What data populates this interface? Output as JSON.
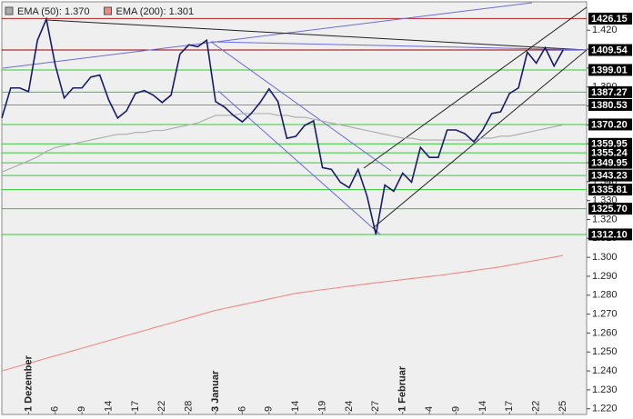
{
  "chart_data": {
    "type": "line",
    "categories": [
      null,
      null,
      null,
      "1 Dezember",
      null,
      null,
      "6",
      null,
      null,
      "9",
      null,
      null,
      "14",
      null,
      null,
      "17",
      null,
      null,
      "22",
      null,
      null,
      "28",
      null,
      null,
      "3 Januar",
      null,
      null,
      "6",
      null,
      null,
      "9",
      null,
      null,
      "14",
      null,
      null,
      "19",
      null,
      null,
      "24",
      null,
      null,
      "27",
      null,
      null,
      "1 Februar",
      null,
      null,
      "4",
      null,
      null,
      "9",
      null,
      null,
      "14",
      null,
      null,
      "17",
      null,
      null,
      "22",
      null,
      null,
      "25"
    ],
    "series": [
      {
        "name": "EMA (50): 1.370",
        "color": "#aaaaaa",
        "values": [
          1.345,
          1.347,
          1.349,
          1.351,
          1.353,
          1.356,
          1.358,
          1.359,
          1.36,
          1.361,
          1.362,
          1.363,
          1.364,
          1.365,
          1.365,
          1.366,
          1.366,
          1.367,
          1.367,
          1.368,
          1.369,
          1.37,
          1.371,
          1.373,
          1.375,
          1.375,
          1.375,
          1.376,
          1.376,
          1.376,
          1.376,
          1.375,
          1.375,
          1.374,
          1.374,
          1.373,
          1.372,
          1.371,
          1.37,
          1.369,
          1.368,
          1.367,
          1.366,
          1.365,
          1.364,
          1.363,
          1.363,
          1.362,
          1.362,
          1.362,
          1.362,
          1.362,
          1.362,
          1.362,
          1.363,
          1.363,
          1.364,
          1.364,
          1.365,
          1.366,
          1.367,
          1.368,
          1.369,
          1.37
        ]
      },
      {
        "name": "EMA (200): 1.301",
        "color": "#f08a80",
        "values": [
          1.24,
          1.2413,
          1.2427,
          1.244,
          1.2453,
          1.2467,
          1.248,
          1.2493,
          1.2507,
          1.252,
          1.2533,
          1.2547,
          1.256,
          1.2573,
          1.2587,
          1.26,
          1.2613,
          1.2627,
          1.264,
          1.2653,
          1.2667,
          1.268,
          1.2693,
          1.2707,
          1.272,
          1.273,
          1.274,
          1.275,
          1.276,
          1.277,
          1.278,
          1.279,
          1.28,
          1.281,
          1.2816,
          1.2823,
          1.2829,
          1.2835,
          1.2841,
          1.2848,
          1.2854,
          1.286,
          1.2866,
          1.2871,
          1.2877,
          1.2882,
          1.2888,
          1.2893,
          1.2899,
          1.2904,
          1.291,
          1.2917,
          1.2923,
          1.293,
          1.2937,
          1.2943,
          1.295,
          1.2959,
          1.2967,
          1.2976,
          1.2984,
          1.2993,
          1.3001,
          1.301
        ]
      },
      {
        "color": "#1a1a6e",
        "values": [
          1.3736,
          1.3895,
          1.3895,
          1.3876,
          1.4147,
          1.4258,
          1.4016,
          1.3842,
          1.3895,
          1.3895,
          1.3953,
          1.3963,
          1.3832,
          1.3736,
          1.3774,
          1.3866,
          1.3881,
          1.3857,
          1.3818,
          1.3857,
          1.4074,
          1.4123,
          1.4113,
          1.4147,
          1.3823,
          1.3794,
          1.375,
          1.3716,
          1.376,
          1.3818,
          1.389,
          1.3823,
          1.3629,
          1.3639,
          1.3697,
          1.3721,
          1.3474,
          1.3465,
          1.3397,
          1.3368,
          1.3465,
          1.3324,
          1.3121,
          1.3382,
          1.3349,
          1.3445,
          1.3397,
          1.3581,
          1.3528,
          1.3528,
          1.3673,
          1.3673,
          1.3653,
          1.361,
          1.3673,
          1.376,
          1.3769,
          1.3866,
          1.3895,
          1.4084,
          1.4026,
          1.4108,
          1.4011,
          1.4094
        ]
      }
    ],
    "ylim": [
      1.217,
      1.435
    ],
    "yticks": [
      {
        "value": 1.22,
        "label": "1.220"
      },
      {
        "value": 1.23,
        "label": "1.230"
      },
      {
        "value": 1.24,
        "label": "1.240"
      },
      {
        "value": 1.25,
        "label": "1.250"
      },
      {
        "value": 1.26,
        "label": "1.260"
      },
      {
        "value": 1.27,
        "label": "1.270"
      },
      {
        "value": 1.28,
        "label": "1.280"
      },
      {
        "value": 1.29,
        "label": "1.290"
      },
      {
        "value": 1.3,
        "label": "1.300"
      },
      {
        "value": 1.31,
        "label": "1.310"
      },
      {
        "value": 1.32,
        "label": "1.320"
      },
      {
        "value": 1.33,
        "label": "1.330"
      },
      {
        "value": 1.34,
        "label": "1.340"
      },
      {
        "value": 1.35,
        "label": "1.350"
      },
      {
        "value": 1.36,
        "label": "1.360"
      },
      {
        "value": 1.37,
        "label": "1.370"
      },
      {
        "value": 1.38,
        "label": "1.380"
      },
      {
        "value": 1.39,
        "label": "1.390"
      },
      {
        "value": 1.4,
        "label": "1.400"
      },
      {
        "value": 1.41,
        "label": "1.410"
      },
      {
        "value": 1.42,
        "label": "1.420"
      }
    ],
    "levels": [
      {
        "value": 1.42615,
        "label": "1426.15",
        "color": "#b22222"
      },
      {
        "value": 1.40954,
        "label": "1409.54",
        "color": "#990000"
      },
      {
        "value": 1.39901,
        "label": "1399.01",
        "color": "#33cc33"
      },
      {
        "value": 1.38727,
        "label": "1387.27",
        "color": "#33cc33"
      },
      {
        "value": 1.38053,
        "label": "1380.53",
        "color": "#33cc33"
      },
      {
        "value": 1.3702,
        "label": "1370.20",
        "color": "#33cc33"
      },
      {
        "value": 1.35995,
        "label": "1359.95",
        "color": "#33cc33"
      },
      {
        "value": 1.35524,
        "label": "1355.24",
        "color": "#33cc33"
      },
      {
        "value": 1.34995,
        "label": "1349.95",
        "color": "#33cc33"
      },
      {
        "value": 1.34323,
        "label": "1343.23",
        "color": "#33cc33"
      },
      {
        "value": 1.33581,
        "label": "1335.81",
        "color": "#33cc33"
      },
      {
        "value": 1.3257,
        "label": "1325.70",
        "color": "#33cc33"
      },
      {
        "value": 1.3121,
        "label": "1312.10",
        "color": "#33cc33"
      }
    ]
  }
}
